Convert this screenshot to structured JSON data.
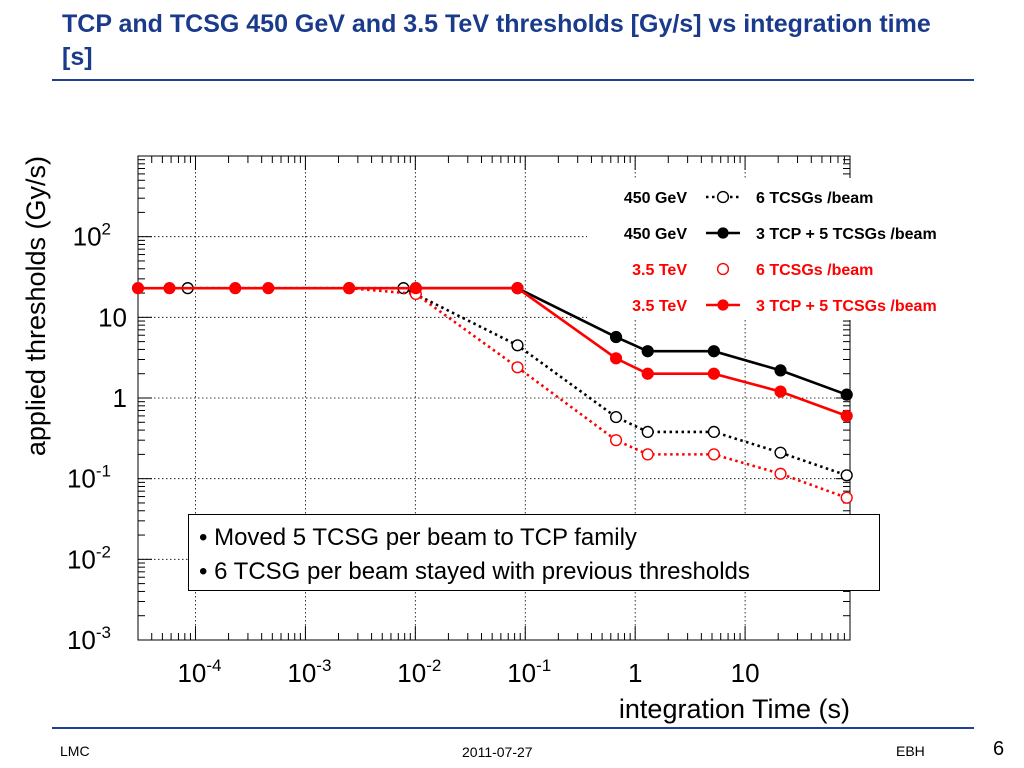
{
  "slide": {
    "title": "TCP and TCSG 450 GeV and 3.5 TeV thresholds [Gy/s] vs integration time [s]",
    "bullets": [
      "• Moved 5 TCSG per beam to TCP family",
      "• 6 TCSG per beam stayed with previous thresholds"
    ],
    "footer_left": "LMC",
    "footer_date": "2011-07-27",
    "footer_right": "EBH",
    "page_number": "6"
  },
  "chart_data": {
    "type": "line",
    "xlabel": "integration Time (s)",
    "ylabel": "applied thresholds  (Gy/s)",
    "x_scale": "log",
    "y_scale": "log",
    "xlim": [
      3e-05,
      90
    ],
    "ylim": [
      0.001,
      1000
    ],
    "grid": true,
    "x_ticks": [
      {
        "value": 0.0001,
        "base": "10",
        "exp": "-4"
      },
      {
        "value": 0.001,
        "base": "10",
        "exp": "-3"
      },
      {
        "value": 0.01,
        "base": "10",
        "exp": "-2"
      },
      {
        "value": 0.1,
        "base": "10",
        "exp": "-1"
      },
      {
        "value": 1,
        "base": "1",
        "exp": ""
      },
      {
        "value": 10,
        "base": "10",
        "exp": ""
      }
    ],
    "y_ticks": [
      {
        "value": 0.001,
        "base": "10",
        "exp": "-3"
      },
      {
        "value": 0.01,
        "base": "10",
        "exp": "-2"
      },
      {
        "value": 0.1,
        "base": "10",
        "exp": "-1"
      },
      {
        "value": 1,
        "base": "1",
        "exp": ""
      },
      {
        "value": 10,
        "base": "10",
        "exp": ""
      },
      {
        "value": 100,
        "base": "10",
        "exp": "2"
      }
    ],
    "legend_position": "top-right",
    "series": [
      {
        "energy": "450 GeV",
        "name": "6 TCSGs  /beam",
        "color": "#000000",
        "line": "dotted",
        "marker": "open-circle",
        "x": [
          8.5e-05,
          0.0078,
          0.085,
          0.67,
          1.3,
          5.2,
          21,
          84
        ],
        "y": [
          23,
          23,
          4.5,
          0.58,
          0.38,
          0.38,
          0.21,
          0.11
        ]
      },
      {
        "energy": "450 GeV",
        "name": "3 TCP + 5 TCSGs /beam",
        "color": "#000000",
        "line": "solid",
        "marker": "filled-circle",
        "x": [
          0.0101,
          0.085,
          0.67,
          1.3,
          5.2,
          21,
          84
        ],
        "y": [
          23,
          23,
          5.7,
          3.8,
          3.8,
          2.2,
          1.1
        ]
      },
      {
        "energy": "3.5 TeV",
        "name": "6 TCSGs  /beam",
        "color": "#ff0000",
        "line": "dotted",
        "marker": "open-circle",
        "x": [
          0.0025,
          0.0101,
          0.085,
          0.67,
          1.3,
          5.2,
          21,
          84
        ],
        "y": [
          23,
          19.5,
          2.4,
          0.3,
          0.2,
          0.2,
          0.115,
          0.058
        ]
      },
      {
        "energy": "3.5 TeV",
        "name": "3 TCP + 5 TCSGs /beam",
        "color": "#ff0000",
        "line": "solid",
        "marker": "filled-circle",
        "x": [
          3e-05,
          5.8e-05,
          0.00023,
          0.00046,
          0.0025,
          0.0101,
          0.085,
          0.67,
          1.3,
          5.2,
          21,
          84
        ],
        "y": [
          23,
          23,
          23,
          23,
          23,
          23,
          23,
          3.1,
          2.0,
          2.0,
          1.2,
          0.6
        ]
      }
    ]
  }
}
